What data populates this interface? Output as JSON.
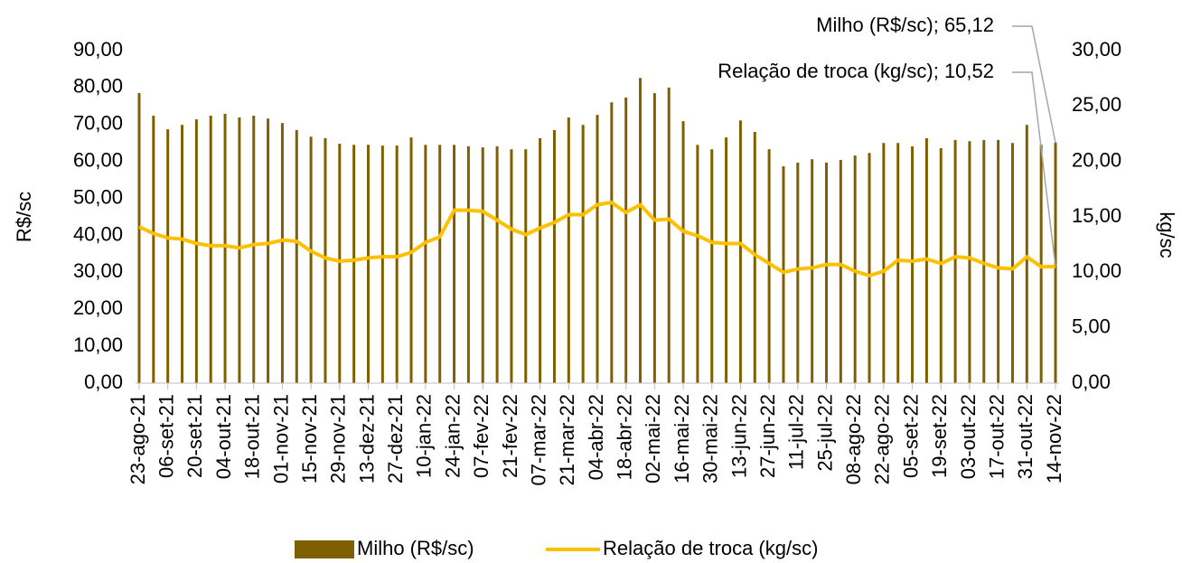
{
  "chart_data": {
    "type": "bar",
    "categories": [
      "23-ago-21",
      null,
      "06-set-21",
      null,
      "20-set-21",
      null,
      "04-out-21",
      null,
      "18-out-21",
      null,
      "01-nov-21",
      null,
      "15-nov-21",
      null,
      "29-nov-21",
      null,
      "13-dez-21",
      null,
      "27-dez-21",
      null,
      "10-jan-22",
      null,
      "24-jan-22",
      null,
      "07-fev-22",
      null,
      "21-fev-22",
      null,
      "07-mar-22",
      null,
      "21-mar-22",
      null,
      "04-abr-22",
      null,
      "18-abr-22",
      null,
      "02-mai-22",
      null,
      "16-mai-22",
      null,
      "30-mai-22",
      null,
      "13-jun-22",
      null,
      "27-jun-22",
      null,
      "11-jul-22",
      null,
      "25-jul-22",
      null,
      "08-ago-22",
      null,
      "22-ago-22",
      null,
      "05-set-22",
      null,
      "19-set-22",
      null,
      "03-out-22",
      null,
      "17-out-22",
      null,
      "31-out-22",
      null,
      "14-nov-22"
    ],
    "series": [
      {
        "name": "Milho (R$/sc)",
        "type": "bar",
        "color": "#7f6000",
        "axis": "y",
        "values": [
          78.5,
          72.4,
          68.7,
          69.9,
          71.4,
          72.4,
          72.9,
          71.9,
          72.4,
          71.6,
          70.4,
          68.5,
          66.7,
          66.3,
          64.8,
          64.5,
          64.5,
          64.3,
          64.3,
          66.5,
          64.5,
          64.5,
          64.5,
          64.1,
          63.8,
          64.1,
          63.3,
          63.3,
          66.3,
          68.5,
          71.9,
          69.9,
          72.6,
          76.0,
          77.3,
          82.6,
          78.5,
          80.0,
          70.9,
          64.5,
          63.3,
          66.5,
          71.1,
          68.0,
          63.3,
          58.7,
          59.7,
          60.6,
          59.7,
          60.4,
          61.6,
          62.3,
          65.0,
          65.0,
          64.1,
          66.3,
          63.6,
          65.8,
          65.5,
          65.8,
          65.8,
          65.0,
          69.9,
          64.5,
          65.12
        ]
      },
      {
        "name": "Relação de troca (kg/sc)",
        "type": "line",
        "color": "#ffc000",
        "axis": "y2",
        "values": [
          14.1,
          13.5,
          13.1,
          13.0,
          12.6,
          12.4,
          12.4,
          12.2,
          12.5,
          12.6,
          12.9,
          12.8,
          11.9,
          11.3,
          11.0,
          11.1,
          11.3,
          11.4,
          11.4,
          11.8,
          12.7,
          13.2,
          15.6,
          15.6,
          15.5,
          14.7,
          13.9,
          13.4,
          14.0,
          14.5,
          15.2,
          15.2,
          16.1,
          16.3,
          15.4,
          16.1,
          14.7,
          14.8,
          13.7,
          13.3,
          12.7,
          12.6,
          12.6,
          11.6,
          10.8,
          10.0,
          10.3,
          10.4,
          10.7,
          10.7,
          10.1,
          9.7,
          10.1,
          11.1,
          11.0,
          11.2,
          10.8,
          11.4,
          11.3,
          10.8,
          10.4,
          10.3,
          11.4,
          10.5,
          10.52
        ]
      }
    ],
    "ylabel": "R$/sc",
    "y2label": "kg/sc",
    "ylim": [
      0,
      90
    ],
    "yticks": [
      {
        "value": 0,
        "label": "0,00"
      },
      {
        "value": 10,
        "label": "10,00"
      },
      {
        "value": 20,
        "label": "20,00"
      },
      {
        "value": 30,
        "label": "30,00"
      },
      {
        "value": 40,
        "label": "40,00"
      },
      {
        "value": 50,
        "label": "50,00"
      },
      {
        "value": 60,
        "label": "60,00"
      },
      {
        "value": 70,
        "label": "70,00"
      },
      {
        "value": 80,
        "label": "80,00"
      },
      {
        "value": 90,
        "label": "90,00"
      }
    ],
    "y2lim": [
      0,
      30
    ],
    "y2ticks": [
      {
        "value": 0,
        "label": "0,00"
      },
      {
        "value": 5,
        "label": "5,00"
      },
      {
        "value": 10,
        "label": "10,00"
      },
      {
        "value": 15,
        "label": "15,00"
      },
      {
        "value": 20,
        "label": "20,00"
      },
      {
        "value": 25,
        "label": "25,00"
      },
      {
        "value": 30,
        "label": "30,00"
      }
    ],
    "annotations": [
      "Milho (R$/sc); 65,12",
      "Relação de troca (kg/sc); 10,52"
    ],
    "legend": "bottom",
    "grid": false
  }
}
